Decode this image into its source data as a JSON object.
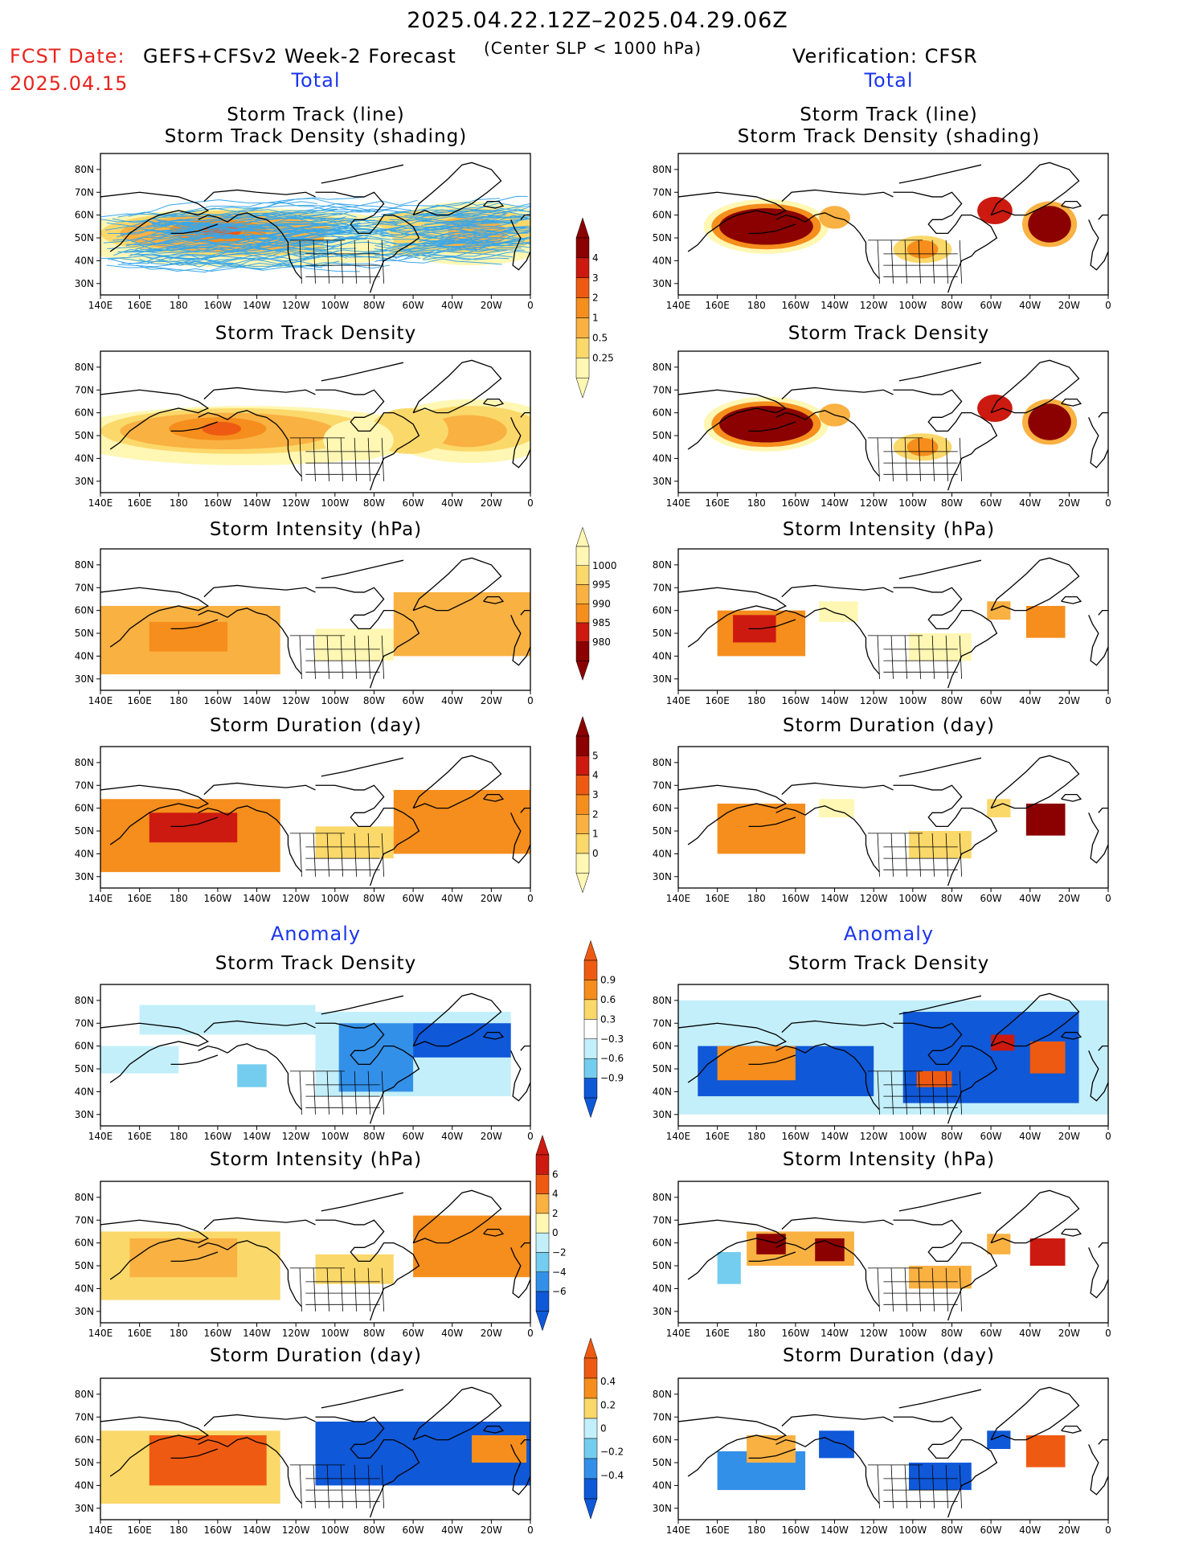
{
  "header": {
    "valid_period": "2025.04.22.12Z–2025.04.29.06Z",
    "fcst_date_label": "FCST Date:",
    "fcst_date": "2025.04.15",
    "model_title": "GEFS+CFSv2 Week-2 Forecast",
    "criterion": "(Center SLP < 1000 hPa)",
    "verification": "Verification: CFSR"
  },
  "sections": {
    "total_left": "Total",
    "total_right": "Total",
    "anomaly_left": "Anomaly",
    "anomaly_right": "Anomaly"
  },
  "titles": {
    "track_line": "Storm Track (line)",
    "track_shading": "Storm Track Density (shading)",
    "density": "Storm Track Density",
    "intensity": "Storm Intensity (hPa)",
    "duration": "Storm Duration (day)"
  },
  "axes": {
    "lon_ticks": [
      "140E",
      "160E",
      "180",
      "160W",
      "140W",
      "120W",
      "100W",
      "80W",
      "60W",
      "40W",
      "20W",
      "0"
    ],
    "lat_ticks": [
      "80N",
      "70N",
      "60N",
      "50N",
      "40N",
      "30N"
    ]
  },
  "colors": {
    "warm": [
      "#fff7b3",
      "#fbd86a",
      "#f9b142",
      "#f58e1c",
      "#ef5a12",
      "#cc1a10",
      "#8b0000"
    ],
    "cool": [
      "#c3effa",
      "#74cdef",
      "#3390e8",
      "#0f58d8"
    ],
    "track": "#3aa7e8"
  },
  "colorbars": {
    "density_total": {
      "labels": [
        "4",
        "3",
        "2",
        "1",
        "0.5",
        "0.25"
      ]
    },
    "intensity_total": {
      "labels": [
        "1000",
        "995",
        "990",
        "985",
        "980"
      ]
    },
    "duration_total": {
      "labels": [
        "5",
        "4",
        "3",
        "2",
        "1",
        "0"
      ]
    },
    "density_anom": {
      "labels": [
        "0.9",
        "0.6",
        "0.3",
        "−0.3",
        "−0.6",
        "−0.9"
      ]
    },
    "intensity_anom": {
      "labels": [
        "6",
        "4",
        "2",
        "0",
        "−2",
        "−4",
        "−6"
      ]
    },
    "duration_anom": {
      "labels": [
        "0.4",
        "0.2",
        "0",
        "−0.2",
        "−0.4"
      ]
    }
  },
  "chart_data": [
    {
      "type": "heatmap",
      "panel": "forecast-total-track-density-shading",
      "units": "storms",
      "color_levels": [
        0.25,
        0.5,
        1,
        2,
        3,
        4
      ],
      "description_regions": [
        "North Pacific 40N-60N",
        "North Atlantic 40N-65N",
        "central North America"
      ],
      "overlay": "ensemble storm tracks (line)"
    },
    {
      "type": "heatmap",
      "panel": "verification-total-track-density-shading",
      "units": "storms",
      "color_levels": [
        0.25,
        0.5,
        1,
        2,
        3,
        4
      ],
      "overlay": "verified storm tracks (line)"
    },
    {
      "type": "heatmap",
      "panel": "forecast-total-track-density",
      "units": "storms",
      "color_levels": [
        0.25,
        0.5,
        1,
        2,
        3,
        4
      ]
    },
    {
      "type": "heatmap",
      "panel": "verification-total-track-density",
      "units": "storms",
      "color_levels": [
        0.25,
        0.5,
        1,
        2,
        3,
        4
      ]
    },
    {
      "type": "heatmap",
      "panel": "forecast-total-intensity",
      "units": "hPa",
      "color_levels": [
        1000,
        995,
        990,
        985,
        980
      ]
    },
    {
      "type": "heatmap",
      "panel": "verification-total-intensity",
      "units": "hPa",
      "color_levels": [
        1000,
        995,
        990,
        985,
        980
      ]
    },
    {
      "type": "heatmap",
      "panel": "forecast-total-duration",
      "units": "day",
      "color_levels": [
        0,
        1,
        2,
        3,
        4,
        5
      ]
    },
    {
      "type": "heatmap",
      "panel": "verification-total-duration",
      "units": "day",
      "color_levels": [
        0,
        1,
        2,
        3,
        4,
        5
      ]
    },
    {
      "type": "heatmap",
      "panel": "forecast-anomaly-track-density",
      "units": "storms",
      "color_levels": [
        -0.9,
        -0.6,
        -0.3,
        0.3,
        0.6,
        0.9
      ]
    },
    {
      "type": "heatmap",
      "panel": "verification-anomaly-track-density",
      "units": "storms",
      "color_levels": [
        -0.9,
        -0.6,
        -0.3,
        0.3,
        0.6,
        0.9
      ]
    },
    {
      "type": "heatmap",
      "panel": "forecast-anomaly-intensity",
      "units": "hPa",
      "color_levels": [
        -6,
        -4,
        -2,
        0,
        2,
        4,
        6
      ]
    },
    {
      "type": "heatmap",
      "panel": "verification-anomaly-intensity",
      "units": "hPa",
      "color_levels": [
        -6,
        -4,
        -2,
        0,
        2,
        4,
        6
      ]
    },
    {
      "type": "heatmap",
      "panel": "forecast-anomaly-duration",
      "units": "day",
      "color_levels": [
        -0.4,
        -0.2,
        0,
        0.2,
        0.4
      ]
    },
    {
      "type": "heatmap",
      "panel": "verification-anomaly-duration",
      "units": "day",
      "color_levels": [
        -0.4,
        -0.2,
        0,
        0.2,
        0.4
      ]
    }
  ]
}
